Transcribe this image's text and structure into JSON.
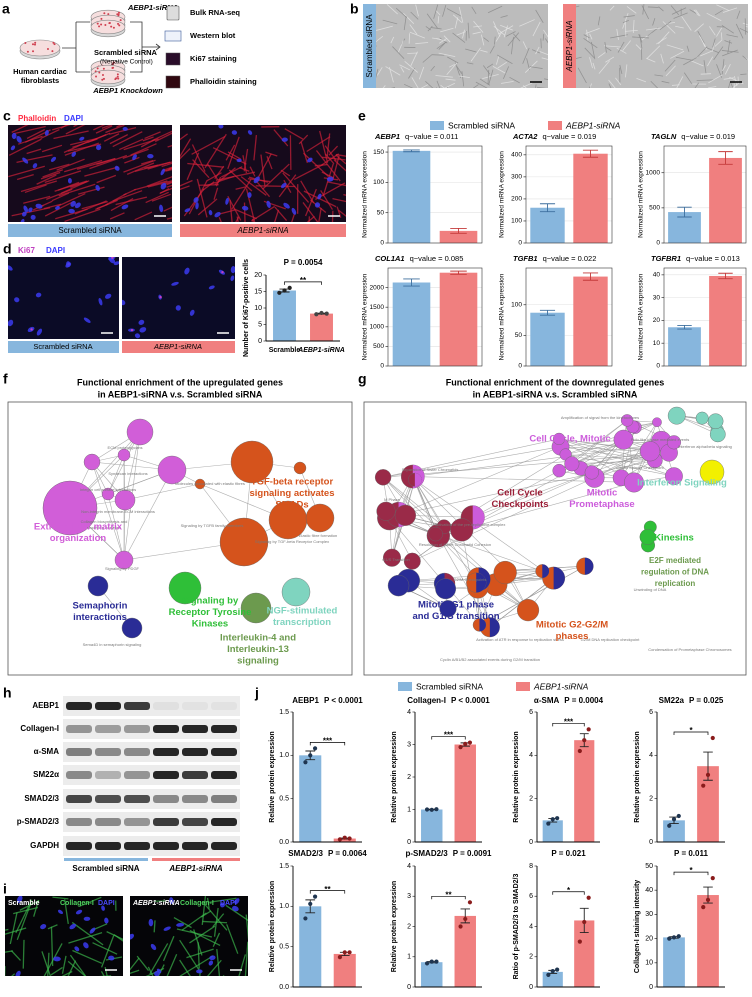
{
  "panel_labels": [
    "a",
    "b",
    "c",
    "d",
    "e",
    "f",
    "g",
    "h",
    "i",
    "j"
  ],
  "schematic": {
    "cells": [
      "Human cardiac",
      "fibroblasts"
    ],
    "treated": "AEBP1-siRNA",
    "control": "Scrambled siRNA",
    "control_note": "(Negative Control)",
    "caption": "AEBP1 Knockdown",
    "assays": [
      "Bulk RNA-seq",
      "Western blot",
      "Ki67 staining",
      "Phalloidin staining"
    ]
  },
  "brightfield": {
    "left": "Scrambled siRNA",
    "right": "AEBP1-siRNA",
    "colors": [
      "#87b6dd",
      "#f07f7f"
    ]
  },
  "phalloidin": {
    "stain": "Phalloidin",
    "dapi": "DAPI",
    "left": "Scrambled siRNA",
    "right": "AEBP1-siRNA",
    "colors": [
      "#87b6dd",
      "#f07f7f"
    ]
  },
  "ki67_images": {
    "stain": "Ki67",
    "dapi": "DAPI",
    "left": "Scrambled siRNA",
    "right": "AEBP1-siRNA",
    "colors": [
      "#87b6dd",
      "#f07f7f"
    ]
  },
  "mrna_legend": {
    "names": [
      "Scrambled siRNA",
      "AEBP1-siRNA"
    ],
    "colors": [
      "#87b6dd",
      "#f07f7f"
    ]
  },
  "protein_legend": {
    "names": [
      "Scrambled siRNA",
      "AEBP1-siRNA"
    ],
    "colors": [
      "#87b6dd",
      "#f07f7f"
    ]
  },
  "enrichment_up": {
    "title": [
      "Functional enrichment of the upregulated genes",
      "in AEBP1-siRNA v.s. Scrambled siRNA"
    ],
    "clusters": [
      {
        "lines": [
          "Extracellular matrix",
          "organization"
        ],
        "color": "#d15ed8"
      },
      {
        "lines": [
          "TGF-beta receptor",
          "signaling activates",
          "SMADs"
        ],
        "color": "#d5531c"
      },
      {
        "lines": [
          "Semaphorin",
          "interactions"
        ],
        "color": "#2a2c96"
      },
      {
        "lines": [
          "Signaling by",
          "Receptor Tyrosine",
          "Kinases"
        ],
        "color": "#2fbf38"
      },
      {
        "lines": [
          "NGF-stimulated",
          "transcription"
        ],
        "color": "#7fd4bf"
      },
      {
        "lines": [
          "Interleukin-4 and",
          "Interleukin-13",
          "signaling"
        ],
        "color": "#6c9a4e"
      }
    ],
    "terms": [
      "ECM proteoglycans",
      "Syndecan interactions",
      "Integrin cell surface interactions",
      "Non-integrin membrane-ECM interactions",
      "Collagen biosynthesis and",
      "modifying enzymes",
      "Signaling by PDGF",
      "Molecules associated with elastic fibres",
      "Signaling by TGFB family members",
      "Signaling by TGF-beta Receptor Complex",
      "Elastic fibre formation",
      "Sema4D in semaphorin signaling"
    ]
  },
  "enrichment_down": {
    "title": [
      "Functional enrichment of the downregulated genes",
      "in AEBP1-siRNA v.s. Scrambled siRNA"
    ],
    "clusters": [
      {
        "lines": [
          "Cell Cycle, Mitotic"
        ],
        "color": "#cc5cdb"
      },
      {
        "lines": [
          "Cell Cycle",
          "Checkpoints"
        ],
        "color": "#9a1d36"
      },
      {
        "lines": [
          "Mitotic",
          "Prometaphase"
        ],
        "color": "#cc5cdb"
      },
      {
        "lines": [
          "Interferon Signaling"
        ],
        "color": "#7fd4bf"
      },
      {
        "lines": [
          "Kinesins"
        ],
        "color": "#2fbf38"
      },
      {
        "lines": [
          "E2F mediated",
          "regulation of DNA",
          "replication"
        ],
        "color": "#6c9a4e"
      },
      {
        "lines": [
          "Mitotic G1 phase",
          "and G1/S transition"
        ],
        "color": "#2a2c96"
      },
      {
        "lines": [
          "Mitotic G2-G2/M",
          "phases"
        ],
        "color": "#d5531c"
      }
    ],
    "terms": [
      "M Phase",
      "Separation of Sister Chromatids",
      "Resolution of Sister Chromatid Cohesion",
      "Mitotic Spindle Checkpoint",
      "Amplification of signal from the kinetochores",
      "Polo-like kinase mediated events",
      "G1/S Transition",
      "G2/M Checkpoints",
      "Activation of ATR in response to replication stress",
      "Interferon alpha/beta signaling",
      "Unwinding of DNA",
      "Condensation of Prometaphase Chromosomes",
      "Cyclin A/B1/B2 associated events during G2/M transition",
      "G2/M DNA replication checkpoint",
      "Activation of the pre-replicative complex"
    ]
  },
  "western": {
    "proteins": [
      "AEBP1",
      "Collagen-I",
      "α-SMA",
      "SM22α",
      "SMAD2/3",
      "p-SMAD2/3",
      "GAPDH"
    ],
    "groups": [
      "Scrambled siRNA",
      "AEBP1-siRNA"
    ],
    "group_colors": [
      "#87b6dd",
      "#f07f7f"
    ]
  },
  "collagen_images": {
    "left": "Scramble",
    "right": "AEBP1-siRNA",
    "stain": "Collagen-I",
    "dapi": "DAPI"
  },
  "chart_data": [
    {
      "type": "bar",
      "annotation": "P = 0.0054",
      "significance": "**",
      "ylabel": "Number of Ki67-positive cells",
      "categories": [
        "Scramble",
        "AEBP1-siRNA"
      ],
      "values": [
        15.3,
        8.3
      ],
      "errors": [
        0.45,
        0.12
      ],
      "points": [
        [
          14.6,
          15.3,
          16.1
        ],
        [
          8.1,
          8.5,
          8.3
        ]
      ],
      "colors": [
        "#87b6dd",
        "#f07f7f"
      ],
      "point_colors": [
        "#222222",
        "#444444"
      ],
      "ylim": [
        0,
        20
      ],
      "yticks": [
        0,
        5,
        10,
        15,
        20
      ]
    },
    {
      "type": "bar",
      "title": "AEBP1",
      "annotation": "q−value = 0.011",
      "ylabel": "Normalized mRNA expression",
      "values": [
        152,
        20
      ],
      "errors": [
        1.5,
        4
      ],
      "colors": [
        "#87b6dd",
        "#f07f7f"
      ],
      "ylim": [
        0,
        160
      ],
      "yticks": [
        0,
        50,
        100,
        150
      ],
      "grid": true
    },
    {
      "type": "bar",
      "title": "ACTA2",
      "annotation": "q−value = 0.019",
      "ylabel": "Normalized mRNA expression",
      "values": [
        160,
        405
      ],
      "errors": [
        18,
        16
      ],
      "colors": [
        "#87b6dd",
        "#f07f7f"
      ],
      "ylim": [
        0,
        440
      ],
      "yticks": [
        0,
        100,
        200,
        300,
        400
      ],
      "grid": true
    },
    {
      "type": "bar",
      "title": "TAGLN",
      "annotation": "q−value = 0.019",
      "ylabel": "Normalized mRNA expression",
      "values": [
        440,
        1210
      ],
      "errors": [
        70,
        90
      ],
      "colors": [
        "#87b6dd",
        "#f07f7f"
      ],
      "ylim": [
        0,
        1380
      ],
      "yticks": [
        0,
        500,
        1000
      ],
      "grid": true
    },
    {
      "type": "bar",
      "title": "COL1A1",
      "annotation": "q−value = 0.085",
      "ylabel": "Normalized mRNA expression",
      "values": [
        2130,
        2380
      ],
      "errors": [
        90,
        40
      ],
      "colors": [
        "#87b6dd",
        "#f07f7f"
      ],
      "ylim": [
        0,
        2500
      ],
      "yticks": [
        0,
        500,
        1000,
        1500,
        2000
      ],
      "grid": true
    },
    {
      "type": "bar",
      "title": "TGFB1",
      "annotation": "q−value = 0.022",
      "ylabel": "Normalized mRNA expression",
      "values": [
        87,
        146
      ],
      "errors": [
        4,
        6
      ],
      "colors": [
        "#87b6dd",
        "#f07f7f"
      ],
      "ylim": [
        0,
        160
      ],
      "yticks": [
        0,
        50,
        100
      ],
      "grid": true
    },
    {
      "type": "bar",
      "title": "TGFBR1",
      "annotation": "q−value = 0.013",
      "ylabel": "Normalized mRNA expression",
      "values": [
        17,
        39.5
      ],
      "errors": [
        0.8,
        1.2
      ],
      "colors": [
        "#87b6dd",
        "#f07f7f"
      ],
      "ylim": [
        0,
        43
      ],
      "yticks": [
        0,
        10,
        20,
        30,
        40
      ],
      "grid": true
    },
    {
      "type": "bar",
      "title": "AEBP1",
      "annotation": "P < 0.0001",
      "significance": "***",
      "ylabel": "Relative protein expression",
      "values": [
        1,
        0.04
      ],
      "errors": [
        0.05,
        0.006
      ],
      "points": [
        [
          0.92,
          1,
          1.08
        ],
        [
          0.03,
          0.05,
          0.04
        ]
      ],
      "colors": [
        "#87b6dd",
        "#f07f7f"
      ],
      "point_colors": [
        "#1f3550",
        "#8a1c1c"
      ],
      "ylim": [
        0,
        1.5
      ],
      "yticks": [
        {
          "value": 0,
          "label": "0.0"
        },
        {
          "value": 0.5,
          "label": "0.5"
        },
        {
          "value": 1,
          "label": "1.0"
        },
        {
          "value": 1.5,
          "label": "1.5"
        }
      ]
    },
    {
      "type": "bar",
      "title": "Collagen-I",
      "annotation": "P < 0.0001",
      "significance": "***",
      "ylabel": "Relative protein expression",
      "values": [
        1,
        3
      ],
      "errors": [
        0.01,
        0.05
      ],
      "points": [
        [
          1,
          0.99,
          1.01
        ],
        [
          2.92,
          3.02,
          3.06
        ]
      ],
      "colors": [
        "#87b6dd",
        "#f07f7f"
      ],
      "point_colors": [
        "#1f3550",
        "#8a1c1c"
      ],
      "ylim": [
        0,
        4
      ],
      "yticks": [
        0,
        1,
        2,
        3,
        4
      ]
    },
    {
      "type": "bar",
      "title": "α-SMA",
      "annotation": "P = 0.0004",
      "significance": "***",
      "ylabel": "Relative protein expression",
      "values": [
        1,
        4.7
      ],
      "errors": [
        0.08,
        0.3
      ],
      "points": [
        [
          0.85,
          1.05,
          1.1
        ],
        [
          4.2,
          4.7,
          5.2
        ]
      ],
      "colors": [
        "#87b6dd",
        "#f07f7f"
      ],
      "point_colors": [
        "#1f3550",
        "#8a1c1c"
      ],
      "ylim": [
        0,
        6
      ],
      "yticks": [
        0,
        2,
        4,
        6
      ]
    },
    {
      "type": "bar",
      "title": "SM22a",
      "annotation": "P = 0.025",
      "significance": "*",
      "ylabel": "Relative protein expression",
      "values": [
        1,
        3.5
      ],
      "errors": [
        0.15,
        0.65
      ],
      "points": [
        [
          0.75,
          1.05,
          1.2
        ],
        [
          2.6,
          3.1,
          4.8
        ]
      ],
      "colors": [
        "#87b6dd",
        "#f07f7f"
      ],
      "point_colors": [
        "#1f3550",
        "#8a1c1c"
      ],
      "ylim": [
        0,
        6
      ],
      "yticks": [
        0,
        2,
        4,
        6
      ]
    },
    {
      "type": "bar",
      "title": "SMAD2/3",
      "annotation": "P = 0.0064",
      "significance": "**",
      "ylabel": "Relative protein expression",
      "values": [
        1,
        0.41
      ],
      "errors": [
        0.08,
        0.02
      ],
      "points": [
        [
          0.85,
          1.03,
          1.12
        ],
        [
          0.37,
          0.43,
          0.43
        ]
      ],
      "colors": [
        "#87b6dd",
        "#f07f7f"
      ],
      "point_colors": [
        "#1f3550",
        "#8a1c1c"
      ],
      "ylim": [
        0,
        1.5
      ],
      "yticks": [
        {
          "value": 0,
          "label": "0.0"
        },
        {
          "value": 0.5,
          "label": "0.5"
        },
        {
          "value": 1,
          "label": "1.0"
        },
        {
          "value": 1.5,
          "label": "1.5"
        }
      ]
    },
    {
      "type": "bar",
      "title": "p-SMAD2/3",
      "annotation": "P = 0.0091",
      "significance": "**",
      "ylabel": "Relative protein expression",
      "values": [
        0.82,
        2.35
      ],
      "errors": [
        0.02,
        0.23
      ],
      "points": [
        [
          0.78,
          0.84,
          0.84
        ],
        [
          2,
          2.25,
          2.8
        ]
      ],
      "colors": [
        "#87b6dd",
        "#f07f7f"
      ],
      "point_colors": [
        "#1f3550",
        "#8a1c1c"
      ],
      "ylim": [
        0,
        4
      ],
      "yticks": [
        0,
        1,
        2,
        3,
        4
      ]
    },
    {
      "type": "bar",
      "annotation": "P = 0.021",
      "significance": "*",
      "ylabel": "Ratio of p-SMAD2/3 to SMAD2/3",
      "values": [
        1,
        4.4
      ],
      "errors": [
        0.1,
        0.8
      ],
      "points": [
        [
          0.8,
          1.05,
          1.15
        ],
        [
          3,
          4.3,
          5.9
        ]
      ],
      "colors": [
        "#87b6dd",
        "#f07f7f"
      ],
      "point_colors": [
        "#1f3550",
        "#8a1c1c"
      ],
      "ylim": [
        0,
        8
      ],
      "yticks": [
        0,
        2,
        4,
        6,
        8
      ]
    },
    {
      "type": "bar",
      "annotation": "P = 0.011",
      "significance": "*",
      "ylabel": "Collagen-I staining intensity",
      "values": [
        20.5,
        38
      ],
      "errors": [
        0.3,
        3.3
      ],
      "points": [
        [
          20,
          20.5,
          21
        ],
        [
          33,
          36,
          45
        ]
      ],
      "colors": [
        "#87b6dd",
        "#f07f7f"
      ],
      "point_colors": [
        "#1f3550",
        "#8a1c1c"
      ],
      "ylim": [
        0,
        50
      ],
      "yticks": [
        0,
        10,
        20,
        30,
        40,
        50
      ]
    }
  ]
}
